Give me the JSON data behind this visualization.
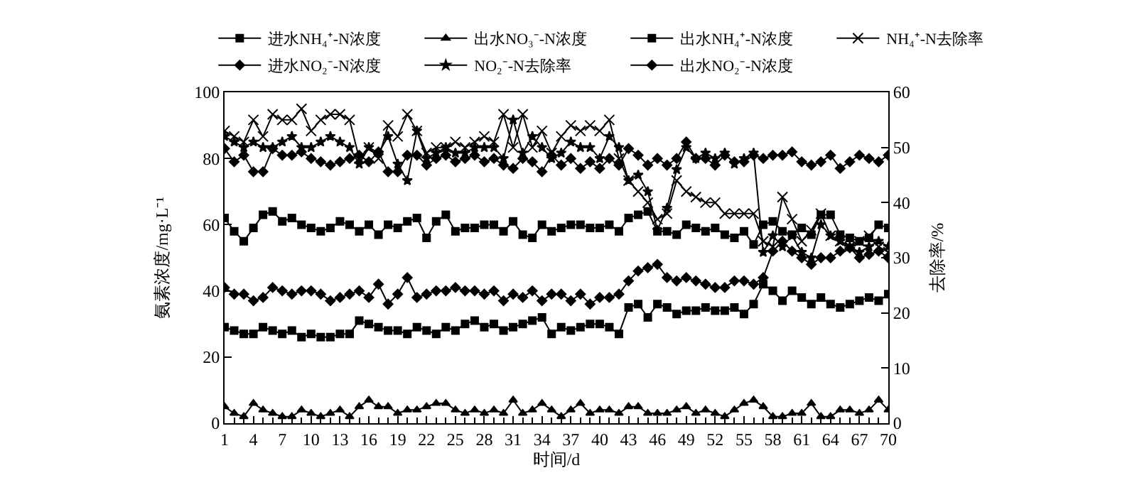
{
  "chart_data": {
    "type": "line",
    "xlabel": "时间/d",
    "ylabel": "氨素浓度/mg·L⁻¹",
    "y2label": "去除率/%",
    "x": [
      1,
      2,
      3,
      4,
      5,
      6,
      7,
      8,
      9,
      10,
      11,
      12,
      13,
      14,
      15,
      16,
      17,
      18,
      19,
      20,
      21,
      22,
      23,
      24,
      25,
      26,
      27,
      28,
      29,
      30,
      31,
      32,
      33,
      34,
      35,
      36,
      37,
      38,
      39,
      40,
      41,
      42,
      43,
      44,
      45,
      46,
      47,
      48,
      49,
      50,
      51,
      52,
      53,
      54,
      55,
      56,
      57,
      58,
      59,
      60,
      61,
      62,
      63,
      64,
      65,
      66,
      67,
      68,
      69,
      70
    ],
    "xlim": [
      1,
      70
    ],
    "xticks": [
      1,
      4,
      7,
      10,
      13,
      16,
      19,
      22,
      25,
      28,
      31,
      34,
      37,
      40,
      43,
      46,
      49,
      52,
      55,
      58,
      61,
      64,
      67,
      70
    ],
    "ylim": [
      0,
      100
    ],
    "yticks": [
      0,
      20,
      40,
      60,
      80,
      100
    ],
    "y2lim": [
      0,
      60
    ],
    "y2ticks": [
      0,
      10,
      20,
      30,
      40,
      50,
      60
    ],
    "legend": "top",
    "line_style": "solid",
    "series": [
      {
        "name": "进水NH₄⁺-N浓度",
        "color": "#000000",
        "marker": "square",
        "values": [
          62,
          58,
          55,
          59,
          63,
          64,
          61,
          62,
          60,
          59,
          58,
          59,
          61,
          60,
          58,
          60,
          57,
          60,
          59,
          61,
          62,
          56,
          61,
          63,
          58,
          59,
          59,
          60,
          60,
          58,
          61,
          57,
          56,
          60,
          58,
          59,
          60,
          60,
          59,
          59,
          60,
          58,
          62,
          63,
          64,
          58,
          58,
          57,
          60,
          59,
          58,
          59,
          57,
          56,
          58,
          54,
          60,
          61,
          58,
          57,
          59,
          57,
          63,
          63,
          57,
          56,
          55,
          56,
          60,
          59
        ]
      },
      {
        "name": "出水NO₃⁻-N浓度",
        "color": "#000000",
        "marker": "triangle",
        "values": [
          5,
          3,
          2,
          6,
          4,
          3,
          2,
          2,
          4,
          3,
          2,
          3,
          4,
          2,
          5,
          7,
          5,
          5,
          3,
          4,
          4,
          5,
          6,
          6,
          4,
          3,
          4,
          3,
          4,
          3,
          7,
          3,
          4,
          6,
          4,
          2,
          4,
          6,
          3,
          4,
          4,
          3,
          5,
          5,
          3,
          3,
          3,
          4,
          5,
          3,
          4,
          3,
          2,
          4,
          6,
          7,
          5,
          2,
          2,
          3,
          3,
          6,
          2,
          2,
          4,
          4,
          3,
          4,
          7,
          4
        ]
      },
      {
        "name": "出水NH₄⁺-N浓度",
        "color": "#000000",
        "marker": "square",
        "values": [
          29,
          28,
          27,
          27,
          29,
          28,
          27,
          28,
          26,
          27,
          26,
          26,
          27,
          27,
          31,
          30,
          29,
          28,
          28,
          27,
          29,
          28,
          27,
          29,
          28,
          30,
          31,
          29,
          30,
          28,
          29,
          30,
          31,
          32,
          27,
          29,
          28,
          29,
          30,
          30,
          29,
          27,
          35,
          36,
          32,
          36,
          35,
          33,
          34,
          34,
          35,
          34,
          34,
          35,
          33,
          36,
          42,
          40,
          37,
          40,
          38,
          36,
          38,
          36,
          35,
          36,
          37,
          38,
          37,
          39
        ]
      },
      {
        "name": "NH₄⁺-N去除率",
        "color": "#000000",
        "marker": "cross",
        "axis": "y2",
        "values": [
          53,
          52,
          51,
          55,
          52,
          56,
          55,
          55,
          57,
          53,
          55,
          56,
          56,
          55,
          48,
          50,
          48,
          54,
          52,
          56,
          53,
          49,
          50,
          50,
          51,
          50,
          51,
          52,
          51,
          56,
          50,
          56,
          50,
          53,
          49,
          52,
          54,
          53,
          54,
          53,
          55,
          48,
          44,
          42,
          40,
          37,
          38,
          44,
          42,
          41,
          40,
          40,
          38,
          38,
          38,
          38,
          33,
          32,
          41,
          37,
          33,
          35,
          38,
          34,
          33,
          32,
          33,
          34,
          32,
          31
        ]
      },
      {
        "name": "进水NO₂⁻-N浓度",
        "color": "#000000",
        "marker": "diamond",
        "values": [
          83,
          79,
          81,
          76,
          76,
          83,
          81,
          81,
          82,
          80,
          79,
          78,
          79,
          80,
          81,
          79,
          82,
          76,
          76,
          81,
          81,
          78,
          80,
          81,
          79,
          80,
          81,
          79,
          80,
          78,
          77,
          80,
          79,
          76,
          81,
          78,
          80,
          77,
          79,
          77,
          80,
          78,
          83,
          81,
          78,
          80,
          78,
          80,
          85,
          80,
          80,
          78,
          81,
          79,
          79,
          81,
          80,
          81,
          81,
          82,
          79,
          78,
          79,
          81,
          77,
          79,
          81,
          80,
          79,
          81
        ]
      },
      {
        "name": "NO₂⁻-N去除率",
        "color": "#000000",
        "marker": "star",
        "axis": "y2",
        "values": [
          52,
          51,
          50,
          51,
          50,
          50,
          51,
          52,
          50,
          50,
          51,
          52,
          51,
          50,
          47,
          50,
          49,
          52,
          47,
          44,
          53,
          48,
          49,
          50,
          49,
          49,
          50,
          50,
          50,
          48,
          55,
          49,
          52,
          50,
          48,
          49,
          51,
          50,
          50,
          48,
          52,
          50,
          44,
          45,
          42,
          35,
          39,
          46,
          50,
          48,
          49,
          48,
          49,
          47,
          48,
          49,
          31,
          34,
          32,
          34,
          31,
          30,
          36,
          34,
          33,
          32,
          31,
          32,
          33,
          32
        ]
      },
      {
        "name": "出水NO₂⁻-N浓度",
        "color": "#000000",
        "marker": "diamond",
        "values": [
          41,
          39,
          39,
          37,
          38,
          41,
          40,
          39,
          40,
          40,
          39,
          37,
          38,
          39,
          40,
          38,
          42,
          36,
          39,
          44,
          38,
          39,
          40,
          40,
          41,
          40,
          40,
          39,
          40,
          37,
          39,
          38,
          40,
          37,
          39,
          39,
          37,
          39,
          36,
          38,
          38,
          39,
          43,
          46,
          47,
          48,
          44,
          43,
          44,
          43,
          42,
          41,
          41,
          43,
          43,
          42,
          44,
          52,
          55,
          52,
          50,
          48,
          50,
          50,
          52,
          53,
          50,
          51,
          52,
          50
        ]
      }
    ]
  }
}
